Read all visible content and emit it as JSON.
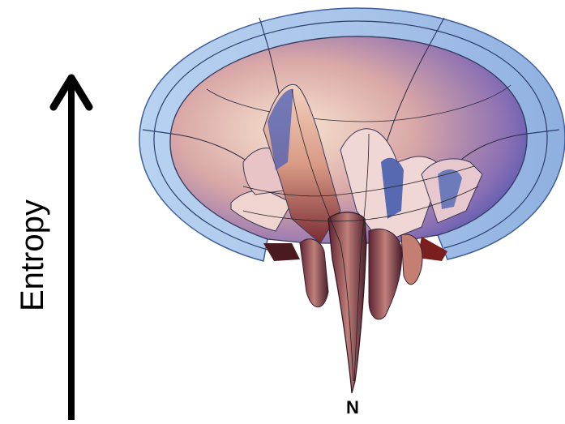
{
  "diagram": {
    "axis_label": "Entropy",
    "bottom_label": "N",
    "colors": {
      "arrow": "#000000",
      "rim": "#9fc0e8",
      "rim_edge": "#4d6fa8",
      "bowl_warm": "#f2cbb3",
      "bowl_cool": "#6a5fb4",
      "landscape_peak": "#e7b59b",
      "landscape_shadow": "#6f2a2e",
      "landscape_blue": "#2f4ea7"
    }
  }
}
